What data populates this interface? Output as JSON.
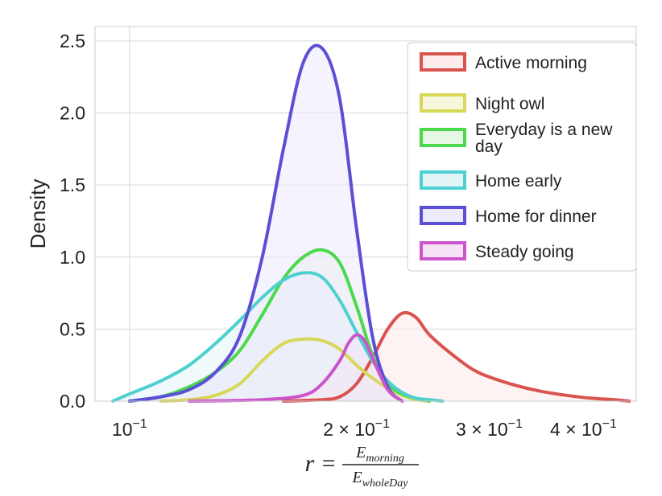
{
  "chart_data": {
    "type": "area",
    "xscale": "log",
    "xlim": [
      0.09,
      0.47
    ],
    "ylim": [
      0,
      2.6
    ],
    "xticks": [
      {
        "value": 0.1,
        "mantissa": "",
        "exp": "−1",
        "base": "10"
      },
      {
        "value": 0.2,
        "mantissa": "2 × ",
        "exp": "−1",
        "base": "10"
      },
      {
        "value": 0.3,
        "mantissa": "3 × ",
        "exp": "−1",
        "base": "10"
      },
      {
        "value": 0.4,
        "mantissa": "4 × ",
        "exp": "−1",
        "base": "10"
      }
    ],
    "yticks": [
      "0.0",
      "0.5",
      "1.0",
      "1.5",
      "2.0",
      "2.5"
    ],
    "ylabel": "Density",
    "xlabel": {
      "lhs": "r =",
      "num": "E",
      "num_sub": "morning",
      "den": "E",
      "den_sub": "wholeDay"
    },
    "grid": true,
    "legend_position": "upper-right",
    "series": [
      {
        "name": "Active morning",
        "color": "#d9534f",
        "fill": "#fdeaea",
        "x": [
          0.16,
          0.18,
          0.19,
          0.2,
          0.21,
          0.22,
          0.23,
          0.24,
          0.25,
          0.27,
          0.29,
          0.32,
          0.35,
          0.38,
          0.41,
          0.44,
          0.46
        ],
        "y": [
          0.0,
          0.01,
          0.03,
          0.12,
          0.3,
          0.5,
          0.61,
          0.58,
          0.46,
          0.31,
          0.2,
          0.12,
          0.07,
          0.04,
          0.02,
          0.01,
          0.0
        ]
      },
      {
        "name": "Night owl",
        "color": "#d7d75a",
        "fill": "#f7f7dc",
        "x": [
          0.11,
          0.12,
          0.13,
          0.14,
          0.15,
          0.16,
          0.17,
          0.18,
          0.19,
          0.2,
          0.21,
          0.22,
          0.23,
          0.24,
          0.25
        ],
        "y": [
          0.0,
          0.01,
          0.04,
          0.12,
          0.28,
          0.4,
          0.43,
          0.42,
          0.36,
          0.25,
          0.16,
          0.09,
          0.04,
          0.01,
          0.0
        ]
      },
      {
        "name": "Everyday is a new day",
        "color": "#4cd94c",
        "fill": "#e6f7e6",
        "x": [
          0.1,
          0.11,
          0.12,
          0.13,
          0.14,
          0.15,
          0.16,
          0.17,
          0.18,
          0.19,
          0.2,
          0.21,
          0.22,
          0.23,
          0.24,
          0.25
        ],
        "y": [
          0.0,
          0.03,
          0.1,
          0.2,
          0.35,
          0.6,
          0.85,
          1.0,
          1.05,
          0.96,
          0.66,
          0.32,
          0.12,
          0.05,
          0.02,
          0.0
        ]
      },
      {
        "name": "Home early",
        "color": "#4fd0d0",
        "fill": "#e3f4f7",
        "x": [
          0.095,
          0.1,
          0.11,
          0.12,
          0.13,
          0.14,
          0.15,
          0.16,
          0.17,
          0.18,
          0.19,
          0.2,
          0.21,
          0.22,
          0.23,
          0.24,
          0.25,
          0.26
        ],
        "y": [
          0.0,
          0.05,
          0.14,
          0.25,
          0.4,
          0.56,
          0.72,
          0.84,
          0.89,
          0.86,
          0.7,
          0.48,
          0.28,
          0.14,
          0.06,
          0.02,
          0.01,
          0.0
        ]
      },
      {
        "name": "Home for dinner",
        "color": "#5b4fd6",
        "fill": "#eceafb",
        "x": [
          0.1,
          0.11,
          0.12,
          0.13,
          0.14,
          0.15,
          0.16,
          0.17,
          0.18,
          0.19,
          0.2,
          0.21,
          0.22,
          0.23
        ],
        "y": [
          0.0,
          0.03,
          0.08,
          0.2,
          0.45,
          1.0,
          1.75,
          2.35,
          2.45,
          2.1,
          1.2,
          0.45,
          0.1,
          0.0
        ]
      },
      {
        "name": "Steady going",
        "color": "#cc55cc",
        "fill": "#f6e4f6",
        "x": [
          0.12,
          0.15,
          0.17,
          0.18,
          0.19,
          0.195,
          0.2,
          0.205,
          0.21,
          0.22,
          0.23
        ],
        "y": [
          0.0,
          0.01,
          0.04,
          0.12,
          0.28,
          0.4,
          0.46,
          0.42,
          0.3,
          0.08,
          0.0
        ]
      }
    ]
  }
}
